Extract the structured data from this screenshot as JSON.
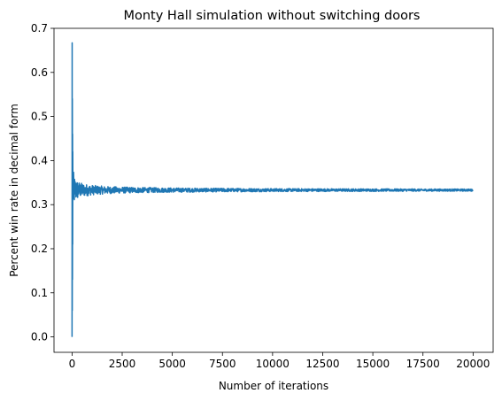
{
  "chart_data": {
    "type": "line",
    "title": "Monty Hall simulation without switching doors",
    "xlabel": "Number of iterations",
    "ylabel": "Percent win rate in decimal form",
    "xlim": [
      -900,
      21000
    ],
    "ylim": [
      -0.035,
      0.7
    ],
    "xticks": [
      0,
      2500,
      5000,
      7500,
      10000,
      12500,
      15000,
      17500,
      20000
    ],
    "yticks": [
      0.0,
      0.1,
      0.2,
      0.3,
      0.4,
      0.5,
      0.6,
      0.7
    ],
    "ytick_labels": [
      "0.0",
      "0.1",
      "0.2",
      "0.3",
      "0.4",
      "0.5",
      "0.6",
      "0.7"
    ],
    "grid": false,
    "series": [
      {
        "color": "#1f77b4",
        "n_points": 20000,
        "converges_to": 0.333,
        "first_values": [
          0.0,
          0.667,
          0.06,
          0.54,
          0.13,
          0.46,
          0.21,
          0.42
        ]
      }
    ]
  }
}
